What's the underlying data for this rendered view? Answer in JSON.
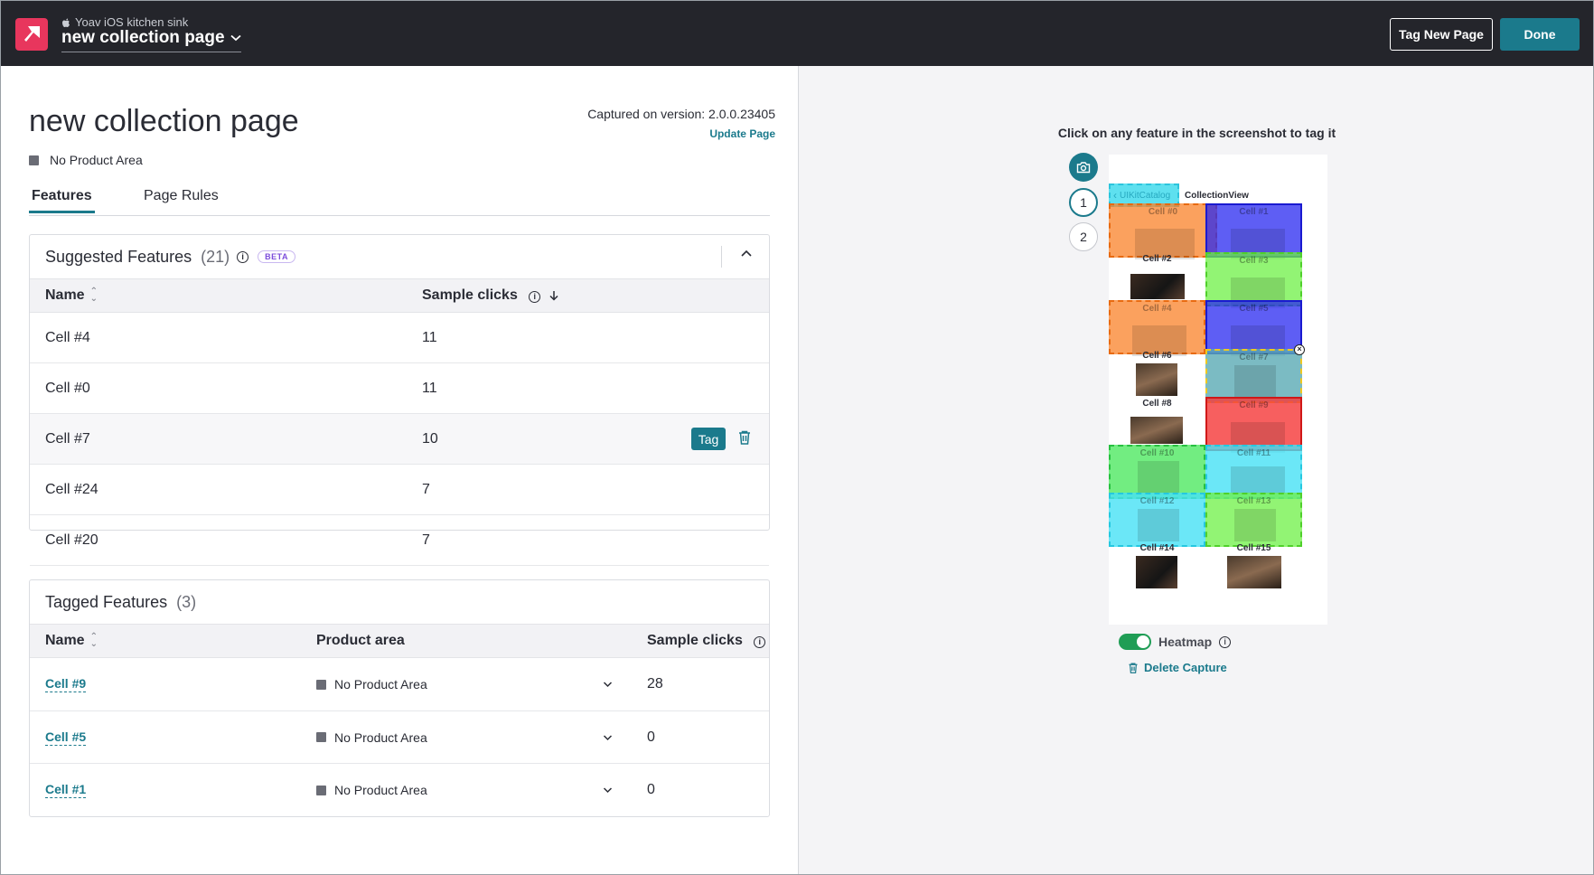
{
  "header": {
    "app_name": "Yoav iOS kitchen sink",
    "page_name": "new collection page",
    "tag_new_page": "Tag New Page",
    "done": "Done"
  },
  "page": {
    "title": "new collection page",
    "product_area": "No Product Area",
    "captured": "Captured on version: 2.0.0.23405",
    "update_link": "Update Page"
  },
  "tabs": [
    "Features",
    "Page Rules"
  ],
  "suggested": {
    "title": "Suggested Features",
    "count": "(21)",
    "beta": "BETA",
    "col_name": "Name",
    "col_clicks": "Sample clicks",
    "rows": [
      {
        "name": "Cell #4",
        "clicks": "11"
      },
      {
        "name": "Cell #0",
        "clicks": "11"
      },
      {
        "name": "Cell #7",
        "clicks": "10"
      },
      {
        "name": "Cell #24",
        "clicks": "7"
      },
      {
        "name": "Cell #20",
        "clicks": "7"
      }
    ],
    "tag_label": "Tag"
  },
  "tagged": {
    "title": "Tagged Features",
    "count": "(3)",
    "col_name": "Name",
    "col_area": "Product area",
    "col_clicks": "Sample clicks",
    "rows": [
      {
        "name": "Cell #9",
        "area": "No Product Area",
        "clicks": "28"
      },
      {
        "name": "Cell #5",
        "area": "No Product Area",
        "clicks": "0"
      },
      {
        "name": "Cell #1",
        "area": "No Product Area",
        "clicks": "0"
      }
    ]
  },
  "preview": {
    "hint": "Click on any feature in the screenshot to tag it",
    "tools": [
      "1",
      "2"
    ],
    "nav_back": "UIKitCatalog",
    "nav_title": "CollectionView",
    "cells": [
      "Cell #0",
      "Cell #1",
      "Cell #2",
      "Cell #3",
      "Cell #4",
      "Cell #5",
      "Cell #6",
      "Cell #7",
      "Cell #8",
      "Cell #9",
      "Cell #10",
      "Cell #11",
      "Cell #12",
      "Cell #13",
      "Cell #14",
      "Cell #15"
    ],
    "heatmap_label": "Heatmap",
    "delete_capture": "Delete Capture"
  },
  "colors": {
    "accent": "#1b7a8c",
    "header_bg": "#24252b",
    "logo": "#e8365d"
  }
}
